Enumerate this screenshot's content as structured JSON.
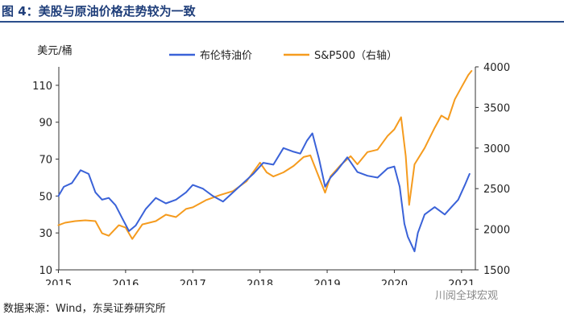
{
  "header": {
    "figure_title": "图 4：美股与原油价格走势较为一致"
  },
  "footer": {
    "source": "数据来源：Wind，东吴证券研究所",
    "watermark": "川阅全球宏观"
  },
  "colors": {
    "brent": "#3a62d8",
    "sp500": "#f59b1e",
    "title": "#1f3e7a"
  },
  "chart_data": {
    "type": "line",
    "title": "美股与原油价格走势较为一致",
    "y_left_label": "美元/桶",
    "y_left_lim": [
      10,
      120
    ],
    "y_left_ticks": [
      10,
      30,
      50,
      70,
      90,
      110
    ],
    "y_right_lim": [
      1500,
      4000
    ],
    "y_right_ticks": [
      1500,
      2000,
      2500,
      3000,
      3500,
      4000
    ],
    "x_lim": [
      2015,
      2021.2
    ],
    "x_ticks": [
      "2015",
      "2016",
      "2017",
      "2018",
      "2019",
      "2020",
      "2021"
    ],
    "legend": [
      "布伦特油价",
      "S&P500（右轴）"
    ],
    "legend_position": "top",
    "series": [
      {
        "name": "布伦特油价",
        "axis": "left",
        "x": [
          2015.0,
          2015.08,
          2015.2,
          2015.33,
          2015.45,
          2015.55,
          2015.65,
          2015.75,
          2015.85,
          2015.95,
          2016.05,
          2016.15,
          2016.3,
          2016.45,
          2016.6,
          2016.75,
          2016.9,
          2017.0,
          2017.15,
          2017.3,
          2017.45,
          2017.6,
          2017.75,
          2017.9,
          2018.05,
          2018.2,
          2018.35,
          2018.5,
          2018.6,
          2018.7,
          2018.78,
          2018.88,
          2018.97,
          2019.05,
          2019.15,
          2019.3,
          2019.45,
          2019.6,
          2019.75,
          2019.9,
          2020.0,
          2020.08,
          2020.15,
          2020.2,
          2020.25,
          2020.3,
          2020.35,
          2020.45,
          2020.6,
          2020.75,
          2020.85,
          2020.95,
          2021.05,
          2021.12
        ],
        "y": [
          50,
          55,
          57,
          64,
          62,
          52,
          48,
          49,
          45,
          38,
          31,
          34,
          43,
          49,
          46,
          48,
          52,
          56,
          54,
          50,
          47,
          52,
          57,
          62,
          68,
          67,
          76,
          74,
          73,
          80,
          84,
          70,
          55,
          60,
          64,
          71,
          63,
          61,
          60,
          65,
          66,
          55,
          35,
          28,
          24,
          20,
          30,
          40,
          44,
          40,
          44,
          48,
          56,
          62
        ]
      },
      {
        "name": "S&P500（右轴）",
        "axis": "right",
        "x": [
          2015.0,
          2015.1,
          2015.25,
          2015.4,
          2015.55,
          2015.65,
          2015.75,
          2015.9,
          2016.0,
          2016.1,
          2016.25,
          2016.45,
          2016.6,
          2016.75,
          2016.9,
          2017.0,
          2017.2,
          2017.4,
          2017.6,
          2017.8,
          2018.0,
          2018.1,
          2018.2,
          2018.35,
          2018.5,
          2018.65,
          2018.75,
          2018.85,
          2018.97,
          2019.05,
          2019.2,
          2019.35,
          2019.45,
          2019.6,
          2019.75,
          2019.9,
          2020.0,
          2020.1,
          2020.17,
          2020.22,
          2020.3,
          2020.45,
          2020.6,
          2020.7,
          2020.8,
          2020.9,
          2021.0,
          2021.1,
          2021.15
        ],
        "y": [
          2050,
          2080,
          2100,
          2110,
          2100,
          1950,
          1920,
          2050,
          2020,
          1880,
          2060,
          2100,
          2180,
          2150,
          2250,
          2270,
          2360,
          2420,
          2470,
          2590,
          2820,
          2700,
          2650,
          2700,
          2780,
          2890,
          2910,
          2700,
          2450,
          2650,
          2790,
          2900,
          2800,
          2950,
          2980,
          3150,
          3230,
          3380,
          2900,
          2300,
          2800,
          3000,
          3250,
          3400,
          3350,
          3600,
          3750,
          3900,
          3950
        ]
      }
    ]
  }
}
